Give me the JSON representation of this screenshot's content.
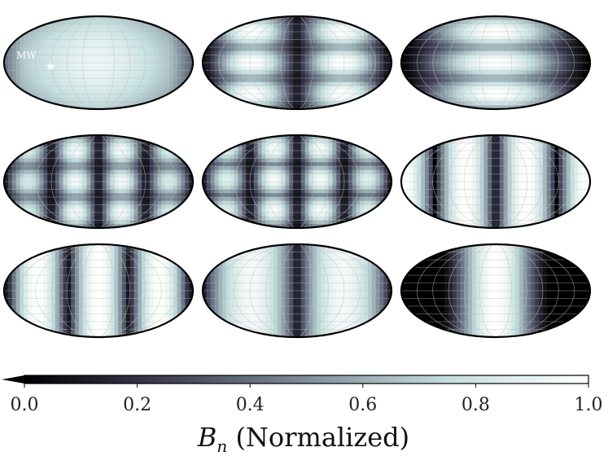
{
  "chart_data": {
    "type": "heatmap",
    "projection": "mollweide",
    "grid": true,
    "colormap": "bone",
    "colormap_stops": [
      "#000000",
      "#3f3f55",
      "#7e8e9a",
      "#c3dede",
      "#ffffff"
    ],
    "colorbar": {
      "ticks": [
        0.0,
        0.2,
        0.4,
        0.6,
        0.8,
        1.0
      ],
      "tick_labels": [
        "0.0",
        "0.2",
        "0.4",
        "0.6",
        "0.8",
        "1.0"
      ],
      "range": [
        0.0,
        1.0
      ],
      "extend": "min",
      "label_main": "B",
      "label_sub": "n",
      "label_rest": " (Normalized)"
    },
    "panels": [
      {
        "row": 0,
        "col": 0,
        "pattern": "dipole"
      },
      {
        "row": 0,
        "col": 1,
        "pattern": "bands-dark-center"
      },
      {
        "row": 0,
        "col": 2,
        "pattern": "bands-bright-center"
      },
      {
        "row": 1,
        "col": 0,
        "pattern": "checker-4"
      },
      {
        "row": 1,
        "col": 1,
        "pattern": "checker-4-shift"
      },
      {
        "row": 1,
        "col": 2,
        "pattern": "stripes-dark-center"
      },
      {
        "row": 2,
        "col": 0,
        "pattern": "stripes-bright-center"
      },
      {
        "row": 2,
        "col": 1,
        "pattern": "stripes-mid"
      },
      {
        "row": 2,
        "col": 2,
        "pattern": "single-bright"
      }
    ],
    "marker": {
      "label": "MW",
      "symbol": "★"
    }
  }
}
